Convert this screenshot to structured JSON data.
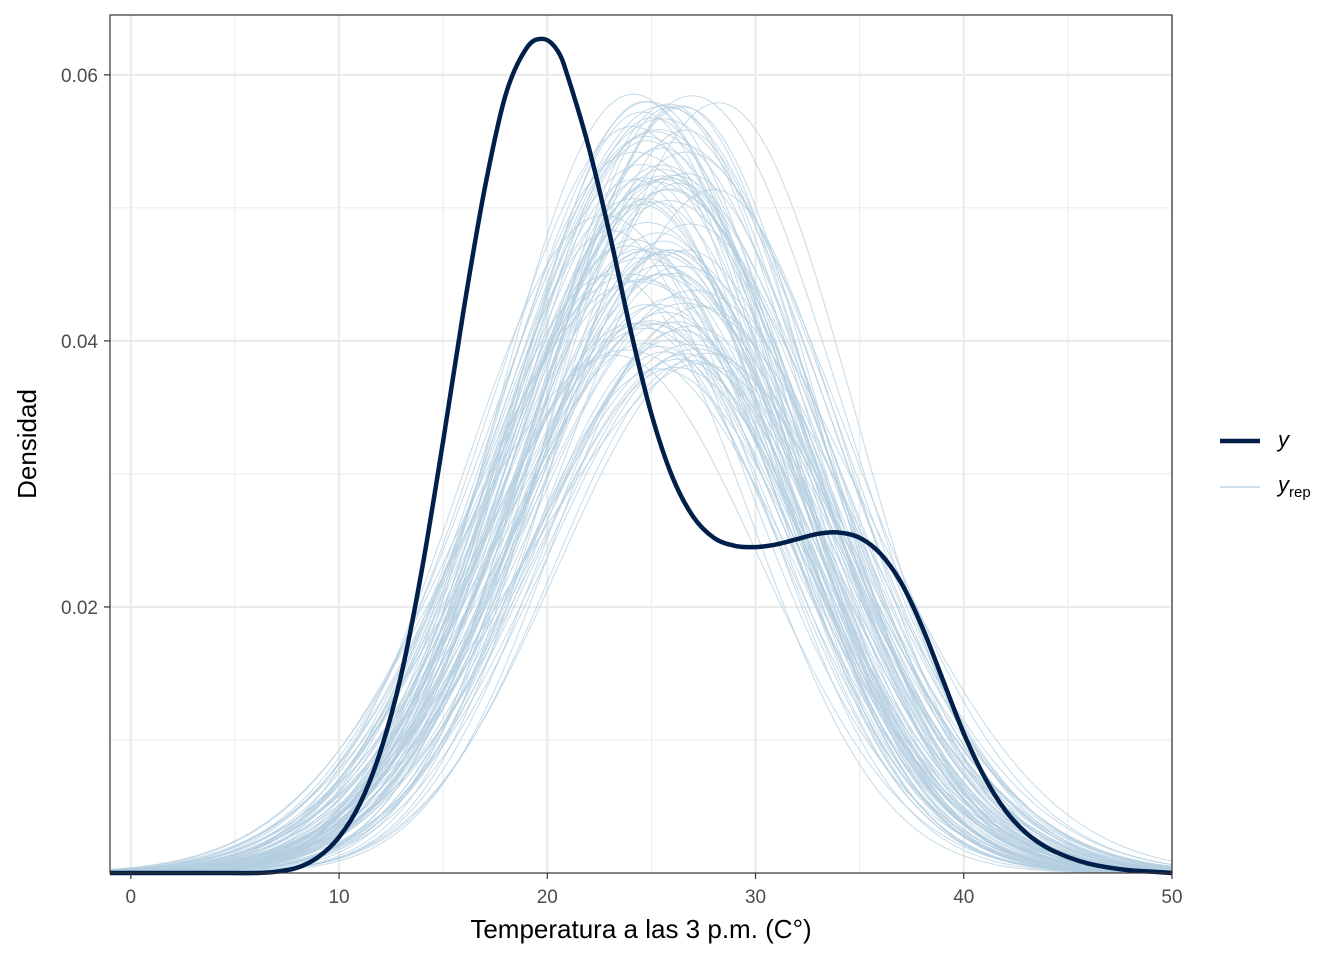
{
  "chart_data": {
    "type": "line",
    "title": "",
    "xlabel": "Temperatura a las 3 p.m. (C°)",
    "ylabel": "Densidad",
    "xlim": [
      -1,
      50
    ],
    "ylim": [
      0.0,
      0.0645
    ],
    "x_ticks": [
      0,
      10,
      20,
      30,
      40,
      50
    ],
    "x_tick_labels": [
      "0",
      "10",
      "20",
      "30",
      "40",
      "50"
    ],
    "y_ticks": [
      0.02,
      0.04,
      0.06
    ],
    "y_tick_labels": [
      "0.02",
      "0.04",
      "0.06"
    ],
    "grid": true,
    "legend_position": "right",
    "legend": {
      "y_label": "y",
      "yrep_label": "y",
      "yrep_subscript": "rep"
    },
    "colors": {
      "y": "#011f4b",
      "yrep": "#b3cde0",
      "panel_border": "#333333",
      "grid": "#ebebeb"
    },
    "series": [
      {
        "name": "y",
        "x": [
          -1,
          0,
          2,
          4,
          6,
          7,
          8,
          9,
          10,
          11,
          12,
          13,
          14,
          15,
          16,
          17,
          18,
          19,
          19.8,
          20.5,
          21,
          22,
          23,
          24,
          25,
          26,
          27,
          28,
          29,
          30,
          31,
          32,
          33,
          34,
          35,
          36,
          37,
          38,
          39,
          40,
          41,
          42,
          43,
          44,
          45,
          46,
          47,
          48,
          49,
          50
        ],
        "y": [
          0.0,
          0.0,
          0.0,
          0.0,
          0.0,
          0.0001,
          0.0004,
          0.0012,
          0.0027,
          0.0052,
          0.0092,
          0.015,
          0.023,
          0.0325,
          0.0425,
          0.0515,
          0.0585,
          0.062,
          0.0627,
          0.0618,
          0.0598,
          0.0545,
          0.048,
          0.0408,
          0.0345,
          0.0298,
          0.0268,
          0.0252,
          0.0246,
          0.0245,
          0.0247,
          0.0251,
          0.0255,
          0.0256,
          0.0252,
          0.024,
          0.0218,
          0.0185,
          0.0145,
          0.0105,
          0.0072,
          0.0047,
          0.003,
          0.0019,
          0.0012,
          0.0007,
          0.0004,
          0.0002,
          0.0001,
          0.0
        ]
      }
    ],
    "yrep": {
      "name": "yrep",
      "count": 100,
      "description": "posterior predictive density draws, roughly unimodal centred near 22-28 with peaks between 0.035 and 0.065",
      "x": [
        -1,
        0,
        2,
        4,
        6,
        8,
        10,
        12,
        14,
        16,
        18,
        20,
        22,
        24,
        26,
        28,
        30,
        32,
        34,
        36,
        38,
        40,
        42,
        44,
        46,
        48,
        50
      ],
      "mean": [
        0.0005,
        0.0008,
        0.0015,
        0.0028,
        0.0048,
        0.0077,
        0.0118,
        0.017,
        0.0232,
        0.0298,
        0.0362,
        0.0415,
        0.0452,
        0.047,
        0.0468,
        0.0447,
        0.041,
        0.0358,
        0.0296,
        0.0228,
        0.0165,
        0.0111,
        0.0069,
        0.004,
        0.0021,
        0.001,
        0.0005
      ]
    }
  }
}
